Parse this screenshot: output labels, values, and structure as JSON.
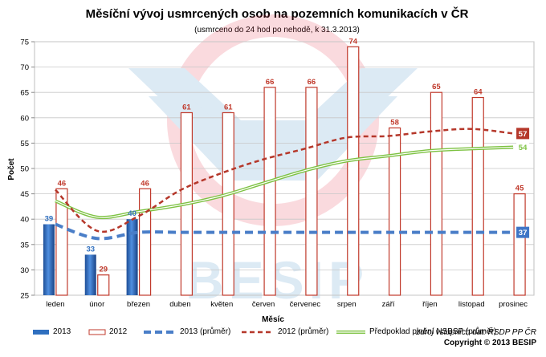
{
  "chart_data": {
    "type": "bar",
    "title": "Měsíční vývoj usmrcených osob na pozemních komunikacích v ČR",
    "subtitle": "(usmrceno do 24 hod po nehodě, k 31.3.2013)",
    "xlabel": "Měsíc",
    "ylabel": "Počet",
    "ylim": [
      25,
      75
    ],
    "yticks": [
      25,
      30,
      35,
      40,
      45,
      50,
      55,
      60,
      65,
      70,
      75
    ],
    "grid": true,
    "categories": [
      "leden",
      "únor",
      "březen",
      "duben",
      "květen",
      "červen",
      "červenec",
      "srpen",
      "září",
      "říjen",
      "listopad",
      "prosinec"
    ],
    "series": [
      {
        "name": "2013",
        "kind": "bar",
        "color": "#2f6fbf",
        "values": [
          39,
          33,
          40,
          null,
          null,
          null,
          null,
          null,
          null,
          null,
          null,
          null
        ]
      },
      {
        "name": "2012",
        "kind": "bar",
        "color": "#c0392b",
        "values": [
          46,
          29,
          46,
          61,
          61,
          66,
          66,
          74,
          58,
          65,
          64,
          45
        ]
      },
      {
        "name": "2013 (průměr)",
        "kind": "line",
        "style": "dashed",
        "color": "#4a7ec8",
        "values": [
          39,
          36.2,
          37.4,
          37.4,
          37.4,
          37.4,
          37.4,
          37.4,
          37.4,
          37.4,
          37.4,
          37.4
        ],
        "end_label": "37"
      },
      {
        "name": "2012 (průměr)",
        "kind": "line",
        "style": "dashed",
        "color": "#b5372a",
        "values": [
          45.8,
          37.7,
          40.6,
          45.7,
          49.1,
          51.8,
          53.9,
          56.1,
          56.4,
          57.3,
          57.8,
          56.9
        ],
        "end_label": "57"
      },
      {
        "name": "Předpoklad plnění NSBSP (průměr)",
        "kind": "line",
        "style": "double",
        "color": "#7dc242",
        "values": [
          43.6,
          40.4,
          41.5,
          42.8,
          44.6,
          47.1,
          49.6,
          51.5,
          52.5,
          53.5,
          53.9,
          54.2
        ],
        "end_label": "54"
      }
    ]
  },
  "watermark": "BESIP",
  "source": "zdroj vstupních dat: ŘSDP PP ČR",
  "copyright": "Copyright © 2013 BESIP"
}
